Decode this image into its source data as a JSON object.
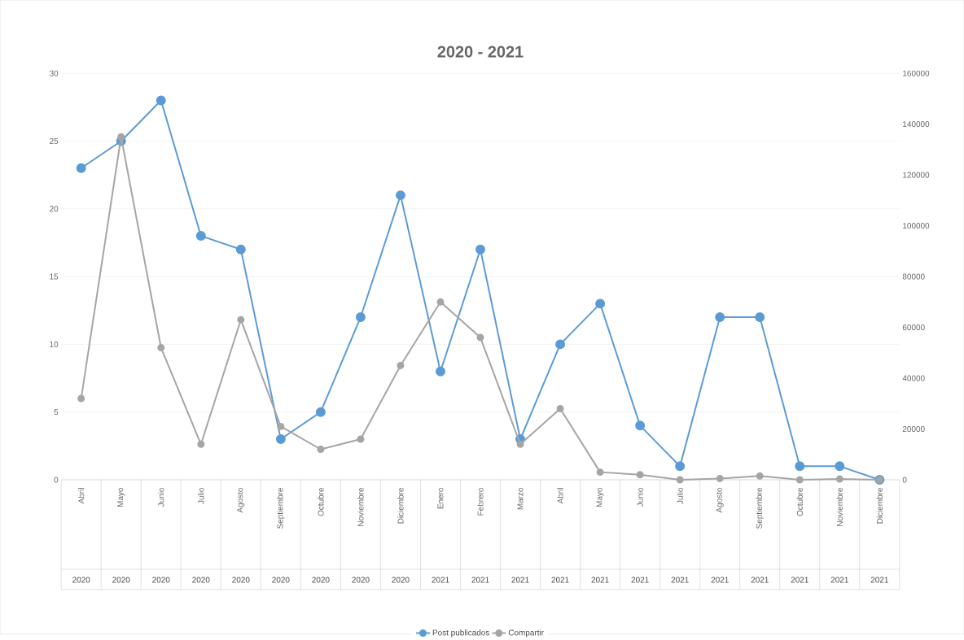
{
  "chart_data": {
    "type": "line",
    "title": "2020 - 2021",
    "categories": [
      "Abril",
      "Mayo",
      "Junio",
      "Julio",
      "Agosto",
      "Septiembre",
      "Octubre",
      "Noviembre",
      "Diciembre",
      "Enero",
      "Febrero",
      "Marzo",
      "Abril",
      "Mayo",
      "Junio",
      "Julio",
      "Agosto",
      "Septiembre",
      "Octubre",
      "Noviembre",
      "Diciembre"
    ],
    "series": [
      {
        "name": "Post publicados",
        "color": "#5b9bd5",
        "values": [
          23,
          25,
          28,
          18,
          17,
          3,
          5,
          12,
          21,
          8,
          17,
          3,
          10,
          13,
          4,
          1,
          12,
          12,
          1,
          1,
          0
        ]
      },
      {
        "name": "Compartir",
        "color": "#a5a5a5",
        "axis": "y2",
        "values": [
          32000,
          135000,
          52000,
          14000,
          63000,
          21000,
          12000,
          16000,
          45000,
          70000,
          56000,
          14000,
          28000,
          3000,
          2000,
          0,
          500,
          1500,
          0,
          300,
          0
        ]
      }
    ],
    "ylim": [
      0,
      30
    ],
    "yticks": [
      0,
      5,
      10,
      15,
      20,
      25,
      30
    ],
    "y2lim": [
      0,
      160000
    ],
    "y2ticks": [
      0,
      20000,
      40000,
      60000,
      80000,
      100000,
      120000,
      140000,
      160000
    ],
    "annotations": [
      "2020",
      "2020",
      "2020",
      "2020",
      "2020",
      "2020",
      "2020",
      "2020",
      "2020",
      "2021",
      "2021",
      "2021",
      "2021",
      "2021",
      "2021",
      "2021",
      "2021",
      "2021",
      "2021",
      "2021",
      "2021"
    ],
    "grid": "y",
    "legend": "bottom",
    "marker": "circle",
    "line_style": "solid"
  }
}
